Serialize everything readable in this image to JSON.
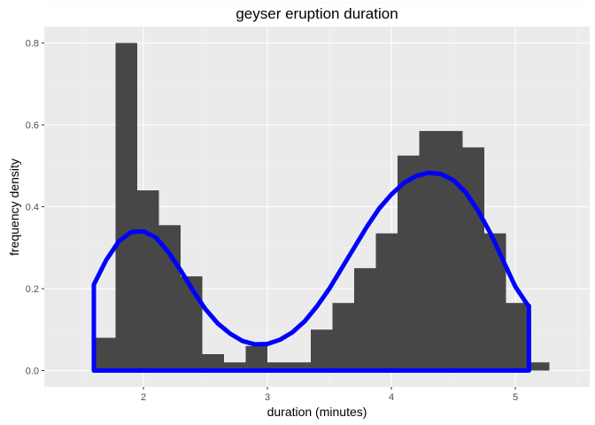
{
  "chart_data": {
    "type": "bar",
    "title": "geyser eruption duration",
    "xlabel": "duration (minutes)",
    "ylabel": "frequency density",
    "xlim": [
      1.2,
      5.6
    ],
    "ylim": [
      -0.04,
      0.84
    ],
    "x_ticks": [
      2,
      3,
      4,
      5
    ],
    "x_tick_labels": [
      "2",
      "3",
      "4",
      "5"
    ],
    "y_ticks": [
      0.0,
      0.2,
      0.4,
      0.6,
      0.8
    ],
    "y_tick_labels": [
      "0.0",
      "0.2",
      "0.4",
      "0.6",
      "0.8"
    ],
    "grid": true,
    "histogram": {
      "bin_width": 0.175,
      "bins": [
        {
          "x0": 1.6,
          "density": 0.08
        },
        {
          "x0": 1.775,
          "density": 0.8
        },
        {
          "x0": 1.95,
          "density": 0.44
        },
        {
          "x0": 2.125,
          "density": 0.355
        },
        {
          "x0": 2.3,
          "density": 0.23
        },
        {
          "x0": 2.475,
          "density": 0.04
        },
        {
          "x0": 2.65,
          "density": 0.02
        },
        {
          "x0": 2.825,
          "density": 0.06
        },
        {
          "x0": 3.0,
          "density": 0.02
        },
        {
          "x0": 3.175,
          "density": 0.02
        },
        {
          "x0": 3.35,
          "density": 0.1
        },
        {
          "x0": 3.525,
          "density": 0.165
        },
        {
          "x0": 3.7,
          "density": 0.25
        },
        {
          "x0": 3.875,
          "density": 0.335
        },
        {
          "x0": 4.05,
          "density": 0.525
        },
        {
          "x0": 4.225,
          "density": 0.585
        },
        {
          "x0": 4.4,
          "density": 0.585
        },
        {
          "x0": 4.575,
          "density": 0.545
        },
        {
          "x0": 4.75,
          "density": 0.335
        },
        {
          "x0": 4.925,
          "density": 0.165
        },
        {
          "x0": 5.1,
          "density": 0.02
        }
      ],
      "color": "#474747"
    },
    "density_curve": {
      "color": "#0000ff",
      "x": [
        1.6,
        1.6,
        1.7,
        1.8,
        1.9,
        2.0,
        2.1,
        2.2,
        2.3,
        2.4,
        2.5,
        2.6,
        2.7,
        2.8,
        2.9,
        3.0,
        3.1,
        3.2,
        3.3,
        3.4,
        3.5,
        3.6,
        3.7,
        3.8,
        3.9,
        4.0,
        4.1,
        4.2,
        4.3,
        4.4,
        4.5,
        4.6,
        4.7,
        4.8,
        4.9,
        5.0,
        5.1,
        5.11,
        5.11,
        1.6
      ],
      "y": [
        0.0,
        0.21,
        0.27,
        0.315,
        0.338,
        0.34,
        0.325,
        0.29,
        0.245,
        0.195,
        0.15,
        0.115,
        0.09,
        0.072,
        0.064,
        0.065,
        0.075,
        0.093,
        0.12,
        0.157,
        0.2,
        0.25,
        0.3,
        0.35,
        0.395,
        0.43,
        0.458,
        0.475,
        0.483,
        0.48,
        0.465,
        0.435,
        0.39,
        0.335,
        0.27,
        0.205,
        0.16,
        0.158,
        0.0,
        0.0
      ]
    }
  }
}
